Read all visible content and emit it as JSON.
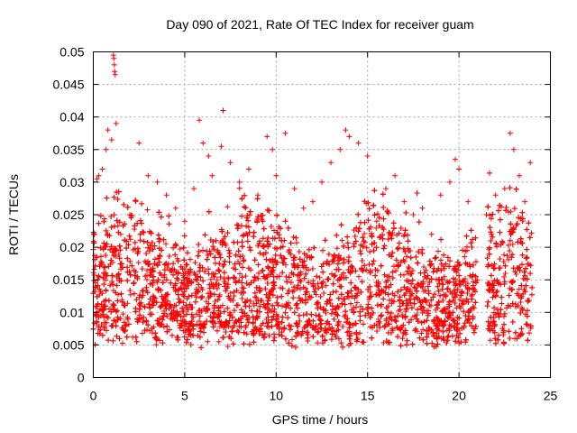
{
  "chart_data": {
    "type": "scatter",
    "title": "Day 090 of 2021, Rate Of TEC Index for receiver guam",
    "xlabel": "GPS time / hours",
    "ylabel": "ROTI / TECUs",
    "xlim": [
      0,
      25
    ],
    "ylim": [
      0,
      0.05
    ],
    "xticks": [
      "0",
      "5",
      "10",
      "15",
      "20",
      "25"
    ],
    "yticks": [
      "0",
      "0.005",
      "0.01",
      "0.015",
      "0.02",
      "0.025",
      "0.03",
      "0.035",
      "0.04",
      "0.045",
      "0.05"
    ],
    "grid": true,
    "marker": "+",
    "color": "#ff0000",
    "series": [
      {
        "points": [
          [
            0.2,
            0.0305
          ],
          [
            0.3,
            0.031
          ],
          [
            0.5,
            0.032
          ],
          [
            0.7,
            0.035
          ],
          [
            0.8,
            0.038
          ],
          [
            1.0,
            0.0365
          ],
          [
            1.1,
            0.0495
          ],
          [
            1.12,
            0.049
          ],
          [
            1.15,
            0.048
          ],
          [
            1.17,
            0.047
          ],
          [
            1.2,
            0.0465
          ],
          [
            1.25,
            0.039
          ],
          [
            1.5,
            0.022
          ],
          [
            2.0,
            0.025
          ],
          [
            2.5,
            0.036
          ],
          [
            3.0,
            0.031
          ],
          [
            3.5,
            0.03
          ],
          [
            4.0,
            0.028
          ],
          [
            4.5,
            0.026
          ],
          [
            5.0,
            0.024
          ],
          [
            5.5,
            0.029
          ],
          [
            5.8,
            0.0395
          ],
          [
            6.0,
            0.036
          ],
          [
            6.3,
            0.034
          ],
          [
            6.5,
            0.031
          ],
          [
            7.0,
            0.0355
          ],
          [
            7.1,
            0.041
          ],
          [
            7.5,
            0.033
          ],
          [
            8.0,
            0.03
          ],
          [
            8.5,
            0.032
          ],
          [
            9.0,
            0.028
          ],
          [
            9.5,
            0.037
          ],
          [
            9.8,
            0.035
          ],
          [
            10.0,
            0.031
          ],
          [
            10.5,
            0.0375
          ],
          [
            11.0,
            0.029
          ],
          [
            11.5,
            0.026
          ],
          [
            12.0,
            0.027
          ],
          [
            12.5,
            0.03
          ],
          [
            13.0,
            0.033
          ],
          [
            13.5,
            0.035
          ],
          [
            13.8,
            0.038
          ],
          [
            14.0,
            0.037
          ],
          [
            14.5,
            0.036
          ],
          [
            15.0,
            0.034
          ],
          [
            15.5,
            0.024
          ],
          [
            16.0,
            0.029
          ],
          [
            16.5,
            0.031
          ],
          [
            17.0,
            0.027
          ],
          [
            17.5,
            0.025
          ],
          [
            18.0,
            0.026
          ],
          [
            18.5,
            0.022
          ],
          [
            19.0,
            0.028
          ],
          [
            19.5,
            0.03
          ],
          [
            19.8,
            0.0335
          ],
          [
            20.0,
            0.032
          ],
          [
            20.5,
            0.027
          ],
          [
            21.0,
            0.015
          ],
          [
            21.5,
            0.025
          ],
          [
            22.0,
            0.028
          ],
          [
            22.5,
            0.029
          ],
          [
            22.8,
            0.0375
          ],
          [
            23.0,
            0.035
          ],
          [
            23.3,
            0.031
          ],
          [
            23.6,
            0.027
          ],
          [
            23.9,
            0.033
          ]
        ]
      }
    ]
  }
}
